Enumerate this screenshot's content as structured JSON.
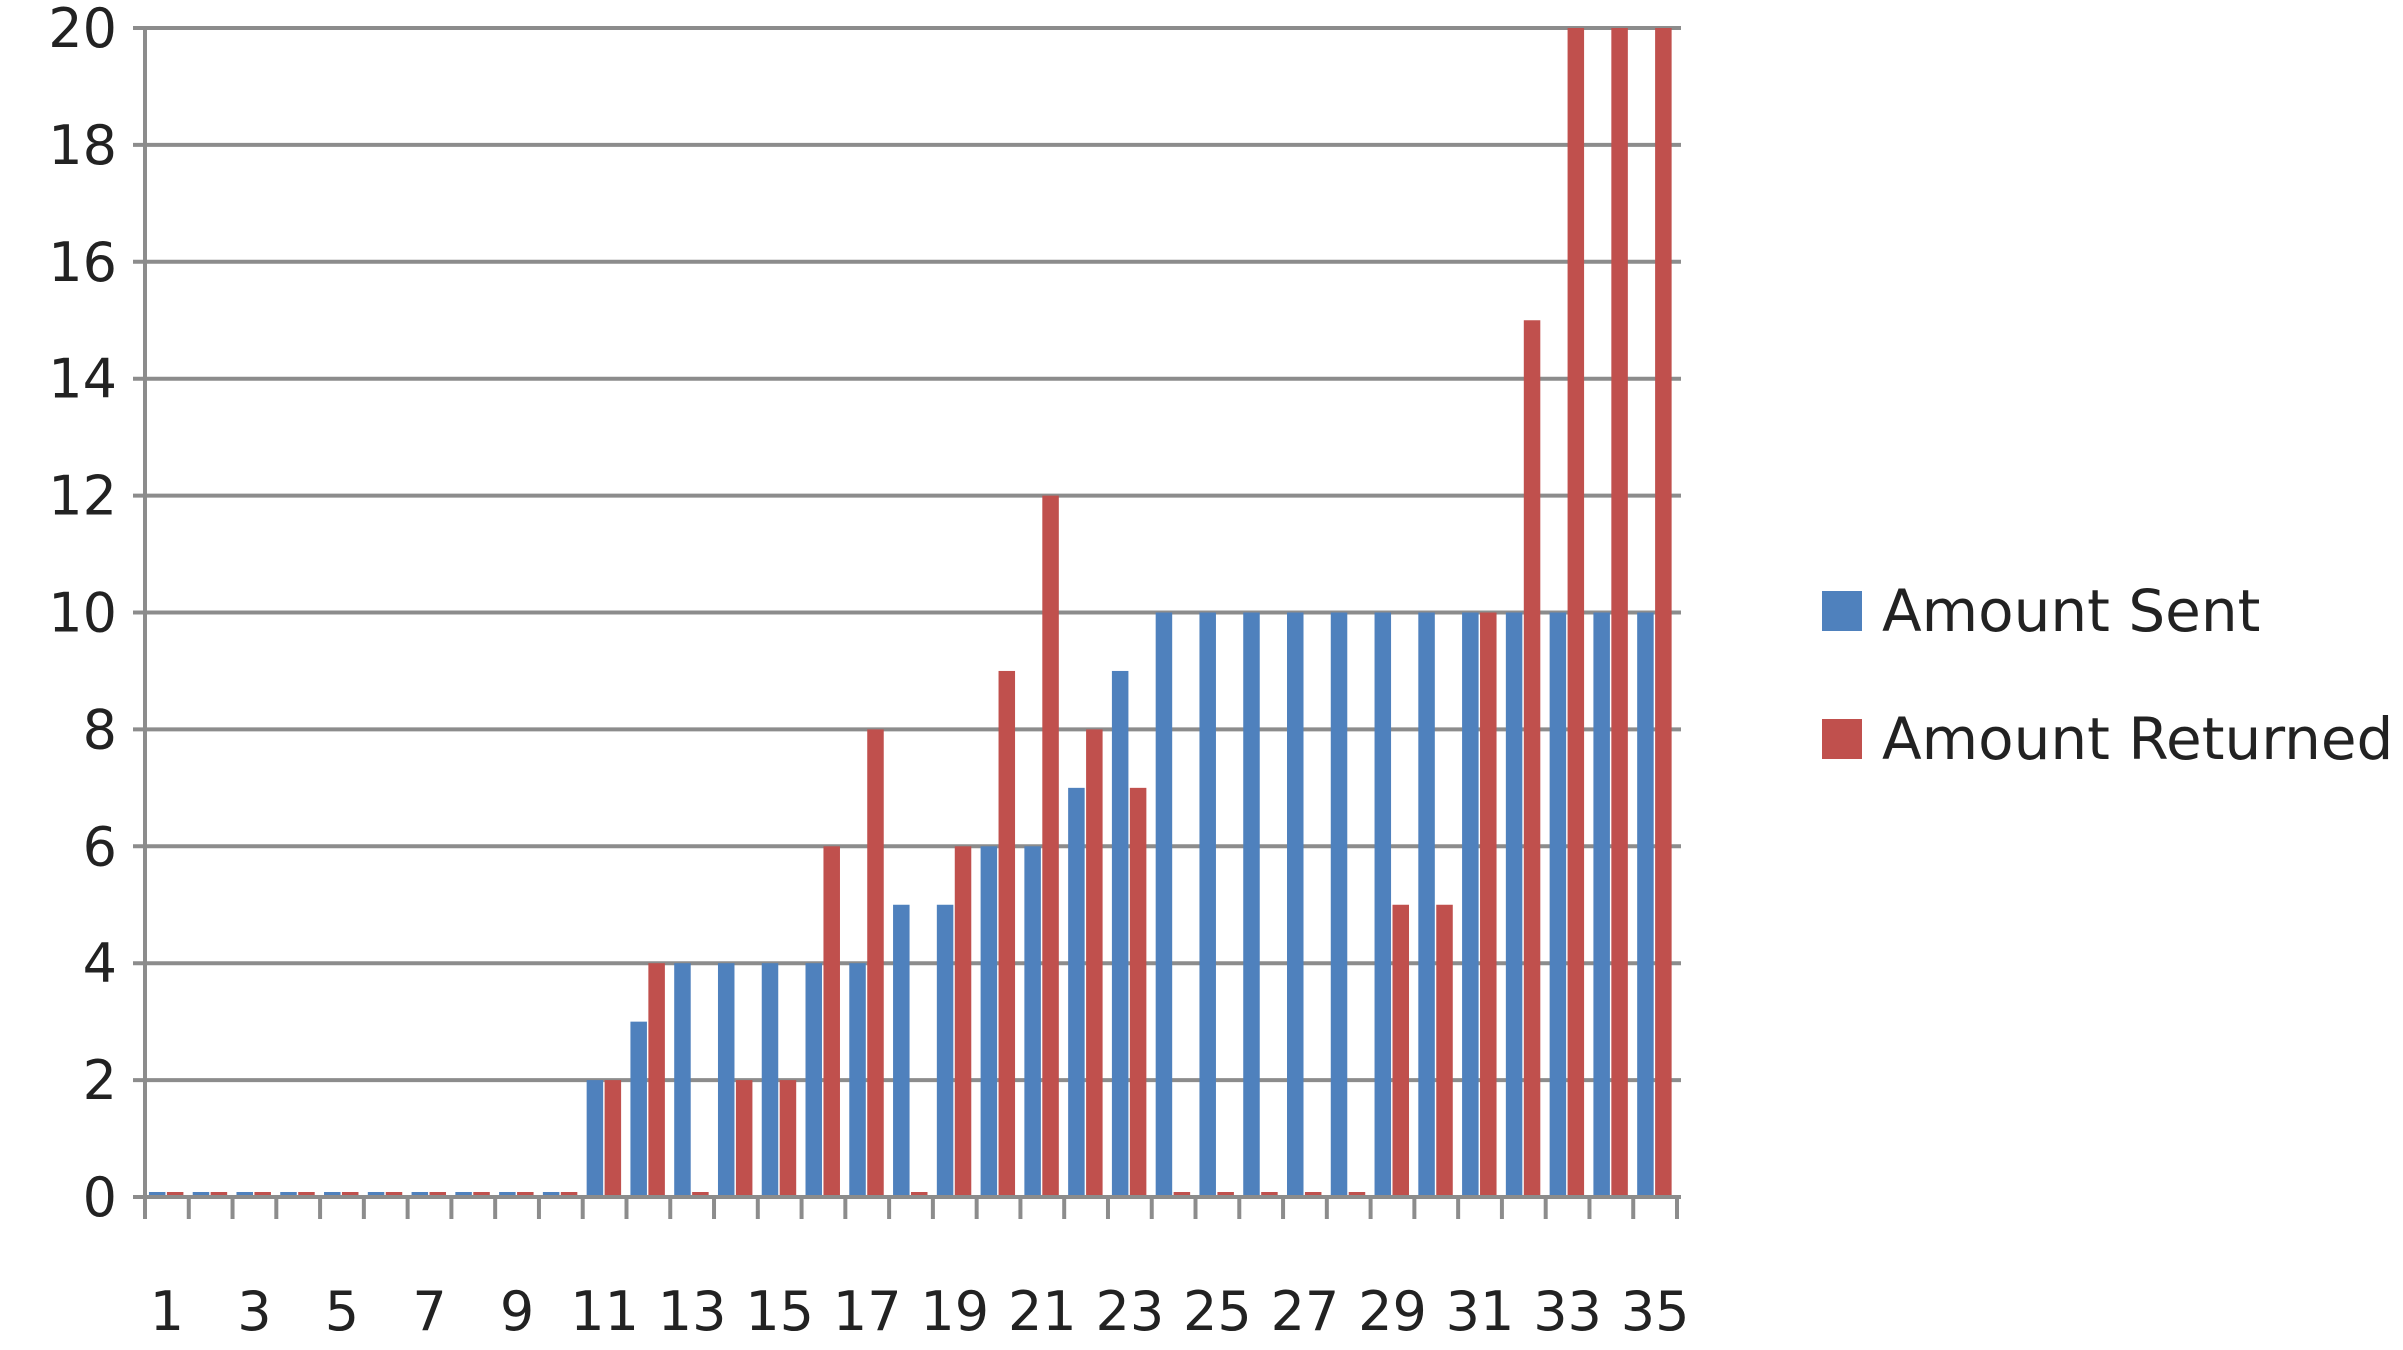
{
  "chart_data": {
    "type": "bar",
    "categories": [
      "1",
      "2",
      "3",
      "4",
      "5",
      "6",
      "7",
      "8",
      "9",
      "10",
      "11",
      "12",
      "13",
      "14",
      "15",
      "16",
      "17",
      "18",
      "19",
      "20",
      "21",
      "22",
      "23",
      "24",
      "25",
      "26",
      "27",
      "28",
      "29",
      "30",
      "31",
      "32",
      "33",
      "34",
      "35"
    ],
    "x_tick_labels": [
      "1",
      "3",
      "5",
      "7",
      "9",
      "11",
      "13",
      "15",
      "17",
      "19",
      "21",
      "23",
      "25",
      "27",
      "29",
      "31",
      "33",
      "35"
    ],
    "y_tick_labels": [
      "0",
      "2",
      "4",
      "6",
      "8",
      "10",
      "12",
      "14",
      "16",
      "18",
      "20"
    ],
    "ylim": [
      0,
      20
    ],
    "grid": true,
    "legend_position": "right",
    "series": [
      {
        "name": "Amount Sent",
        "color": "#4f81bd",
        "values": [
          0,
          0,
          0,
          0,
          0,
          0,
          0,
          0,
          0,
          0,
          2,
          3,
          4,
          4,
          4,
          4,
          4,
          5,
          5,
          6,
          6,
          7,
          9,
          10,
          10,
          10,
          10,
          10,
          10,
          10,
          10,
          10,
          10,
          10,
          10
        ]
      },
      {
        "name": "Amount Returned",
        "color": "#c0504d",
        "values": [
          0,
          0,
          0,
          0,
          0,
          0,
          0,
          0,
          0,
          0,
          2,
          4,
          0,
          2,
          2,
          6,
          8,
          0,
          6,
          9,
          12,
          8,
          7,
          0,
          0,
          0,
          0,
          0,
          5,
          5,
          10,
          15,
          20,
          20,
          20
        ]
      }
    ],
    "title": "",
    "xlabel": "",
    "ylabel": ""
  }
}
